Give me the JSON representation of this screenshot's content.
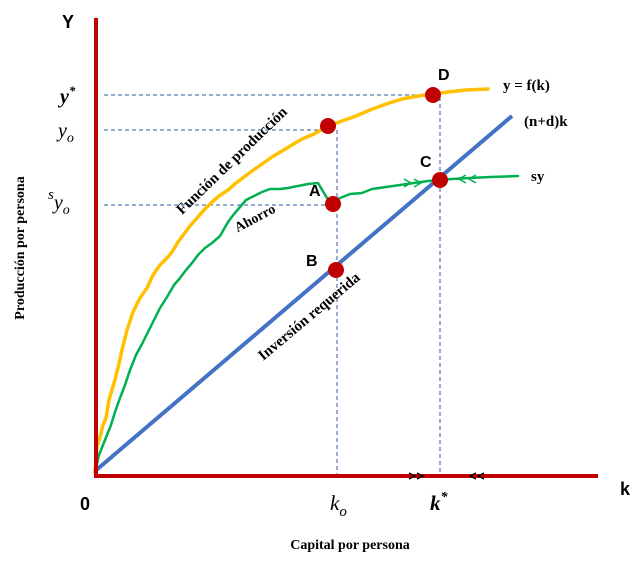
{
  "axes": {
    "y_axis_label": "Y",
    "x_axis_label": "k",
    "origin_label": "0",
    "y_title": "Producción por persona",
    "x_title": "Capital por persona"
  },
  "ticks": {
    "y_star": "y",
    "y_star_sup": "*",
    "y_o": "y",
    "y_o_sub": "o",
    "sy_o_pre": "s",
    "sy_o": "y",
    "sy_o_sub": "o",
    "k_o": "k",
    "k_o_sub": "o",
    "k_star": "k",
    "k_star_sup": "*"
  },
  "curves": {
    "production_legend": "y = f(k)",
    "investment_legend": "(n+d)k",
    "savings_legend": "sy",
    "production_name": "Función de producción",
    "savings_name": "Ahorro",
    "investment_name": "Inversión requerida"
  },
  "points": {
    "A": "A",
    "B": "B",
    "C": "C",
    "D": "D"
  },
  "colors": {
    "axis": "#c00000",
    "production": "#ffc000",
    "savings": "#00b050",
    "investment": "#4472c4",
    "points": "#c00000",
    "guides": "#2e5fa3"
  }
}
